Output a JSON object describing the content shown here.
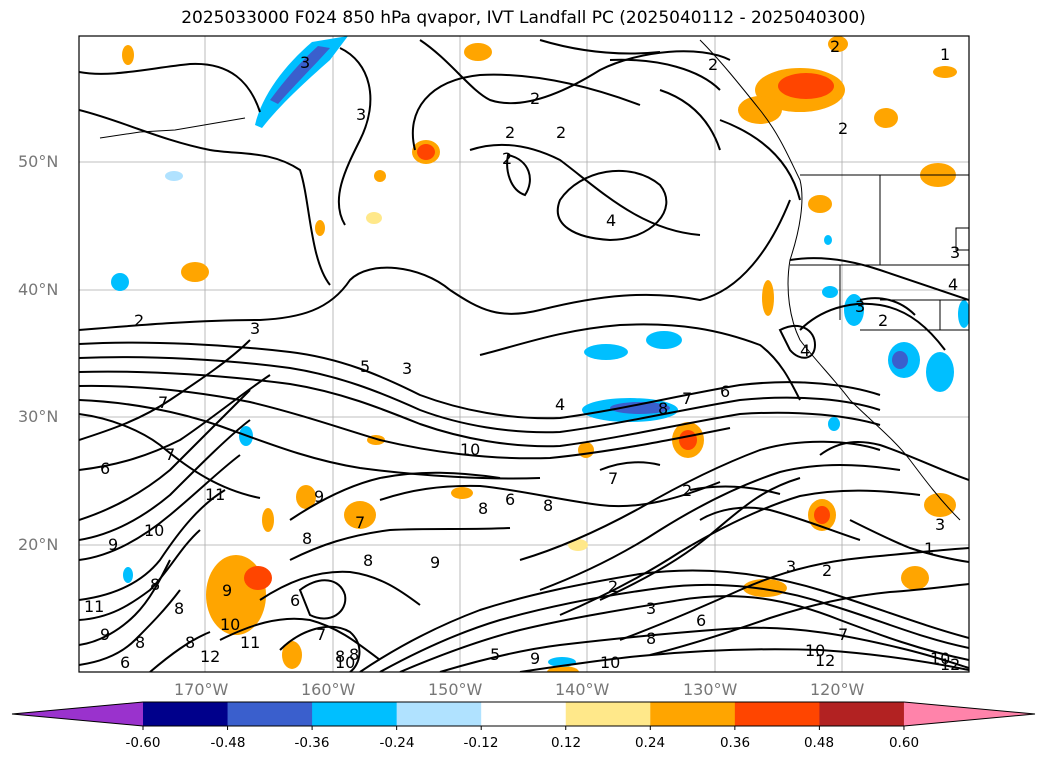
{
  "title": "2025033000 F024 850 hPa qvapor, IVT Landfall PC (2025040112 - 2025040300)",
  "map": {
    "lat_labels": [
      "50°N",
      "40°N",
      "30°N",
      "20°N"
    ],
    "lon_labels": [
      "170°W",
      "160°W",
      "150°W",
      "140°W",
      "130°W",
      "120°W"
    ],
    "contour_labels": [
      "2",
      "3",
      "4",
      "5",
      "6",
      "7",
      "8",
      "9",
      "10",
      "11",
      "12"
    ],
    "anomaly_labels": {
      "pos": "2",
      "neg": "3"
    }
  },
  "colorbar": {
    "levels": [
      "-0.60",
      "-0.48",
      "-0.36",
      "-0.24",
      "-0.12",
      "0.12",
      "0.24",
      "0.36",
      "0.48",
      "0.60"
    ],
    "colors": [
      "#9a32cd",
      "#00008b",
      "#3a5fcd",
      "#00bfff",
      "#b0e2ff",
      "#ffffff",
      "#ffe88a",
      "#ffa500",
      "#ff4500",
      "#b22222",
      "#ff83aa"
    ]
  },
  "contour_label_positions_note": ""
}
